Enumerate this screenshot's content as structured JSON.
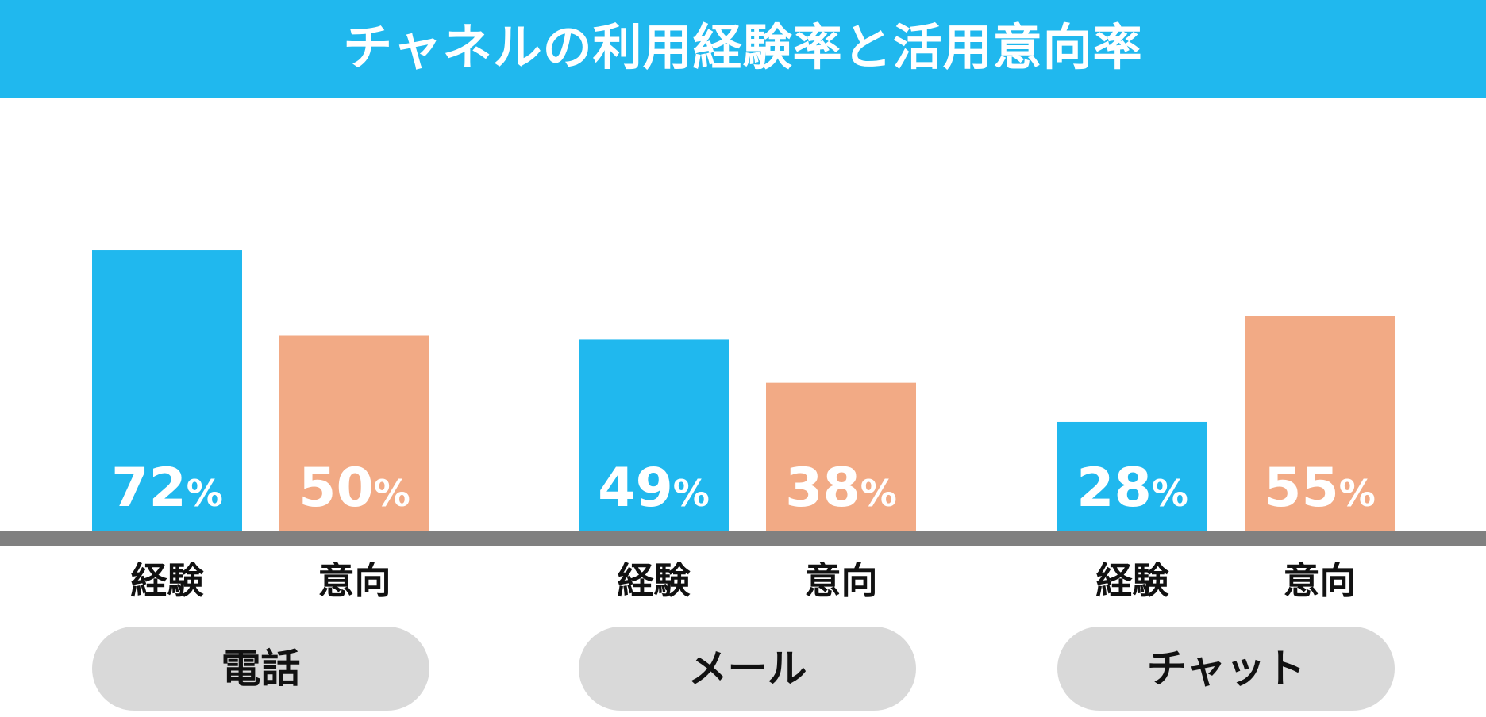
{
  "title": "チャネルの利用経験率と活用意向率",
  "colors": {
    "header": "#20b8ee",
    "experience": "#20b8ee",
    "intention": "#f2aa85",
    "baseline": "#808080",
    "pill": "#d9d9d9"
  },
  "chart_data": {
    "type": "bar",
    "title": "チャネルの利用経験率と活用意向率",
    "groups": [
      "電話",
      "メール",
      "チャット"
    ],
    "series": [
      {
        "name": "経験",
        "values": [
          72,
          49,
          28
        ]
      },
      {
        "name": "意向",
        "values": [
          50,
          38,
          55
        ]
      }
    ],
    "value_suffix": "%",
    "ylim": [
      0,
      100
    ],
    "grid": false,
    "legend": "none"
  }
}
